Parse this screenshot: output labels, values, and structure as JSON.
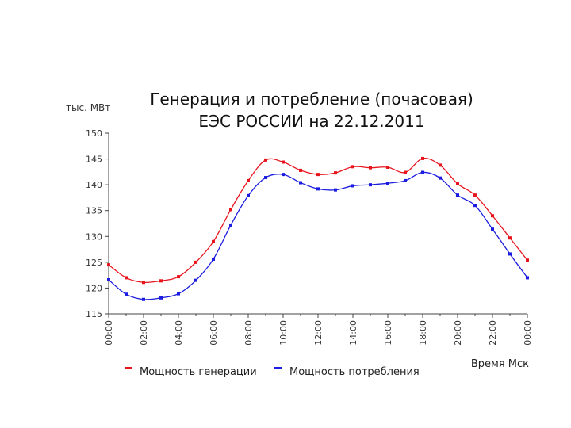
{
  "chart_data": {
    "type": "line",
    "title_line1": "Генерация и потребление (почасовая)",
    "title_line2": "ЕЭС РОССИИ на 22.12.2011",
    "ylabel": "тыс. МВт",
    "xlabel": "Время Мск",
    "ylim": [
      115,
      150
    ],
    "yticks": [
      115,
      120,
      125,
      130,
      135,
      140,
      145,
      150
    ],
    "x": [
      "00:00",
      "01:00",
      "02:00",
      "03:00",
      "04:00",
      "05:00",
      "06:00",
      "07:00",
      "08:00",
      "09:00",
      "10:00",
      "11:00",
      "12:00",
      "13:00",
      "14:00",
      "15:00",
      "16:00",
      "17:00",
      "18:00",
      "19:00",
      "20:00",
      "21:00",
      "22:00",
      "23:00",
      "00:00"
    ],
    "xtick_labels": [
      "00:00",
      "02:00",
      "04:00",
      "06:00",
      "08:00",
      "10:00",
      "12:00",
      "14:00",
      "16:00",
      "18:00",
      "20:00",
      "22:00",
      "00:00"
    ],
    "grid": false,
    "legend_position": "bottom",
    "series": [
      {
        "name": "Мощность генерации",
        "color": "#e8141c",
        "values": [
          124.5,
          122.0,
          121.1,
          121.4,
          122.2,
          125.0,
          129.0,
          135.2,
          140.8,
          144.8,
          144.4,
          142.8,
          142.0,
          142.3,
          143.5,
          143.3,
          143.4,
          142.4,
          145.1,
          143.8,
          140.2,
          138.0,
          134.0,
          129.7,
          125.4
        ]
      },
      {
        "name": "Мощность потребления",
        "color": "#1c1ce0",
        "values": [
          121.6,
          118.8,
          117.8,
          118.1,
          118.9,
          121.5,
          125.6,
          132.2,
          137.9,
          141.4,
          142.0,
          140.4,
          139.2,
          139.0,
          139.8,
          140.0,
          140.3,
          140.8,
          142.4,
          141.3,
          138.0,
          136.0,
          131.4,
          126.6,
          122.0
        ]
      }
    ]
  }
}
